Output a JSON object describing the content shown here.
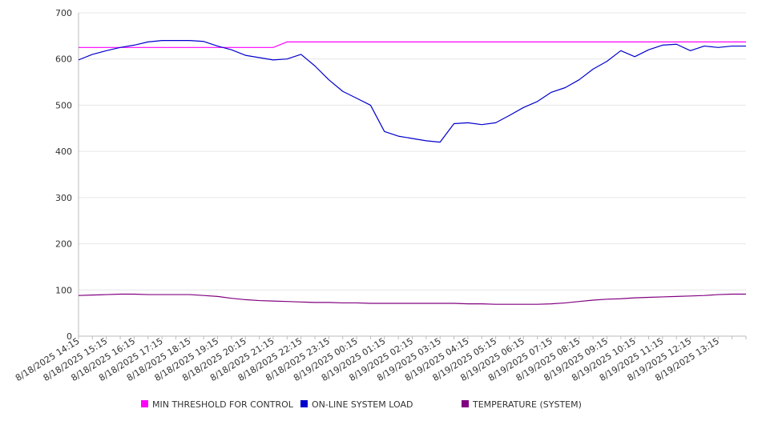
{
  "chart_data": {
    "type": "line",
    "title": "",
    "xlabel": "",
    "ylabel": "",
    "ylim": [
      0,
      700
    ],
    "yticks": [
      0,
      100,
      200,
      300,
      400,
      500,
      600,
      700
    ],
    "grid": "horizontal",
    "legend_position": "bottom",
    "x_tick_labels": [
      "8/18/2025 14:15",
      "8/18/2025 15:15",
      "8/18/2025 16:15",
      "8/18/2025 17:15",
      "8/18/2025 18:15",
      "8/18/2025 19:15",
      "8/18/2025 20:15",
      "8/18/2025 21:15",
      "8/18/2025 22:15",
      "8/18/2025 23:15",
      "8/19/2025 00:15",
      "8/19/2025 01:15",
      "8/19/2025 02:15",
      "8/19/2025 03:15",
      "8/19/2025 04:15",
      "8/19/2025 05:15",
      "8/19/2025 06:15",
      "8/19/2025 07:15",
      "8/19/2025 08:15",
      "8/19/2025 09:15",
      "8/19/2025 10:15",
      "8/19/2025 11:15",
      "8/19/2025 12:15",
      "8/19/2025 13:15"
    ],
    "x": [
      "8/18/2025 14:15",
      "8/18/2025 14:45",
      "8/18/2025 15:15",
      "8/18/2025 15:45",
      "8/18/2025 16:15",
      "8/18/2025 16:45",
      "8/18/2025 17:15",
      "8/18/2025 17:45",
      "8/18/2025 18:15",
      "8/18/2025 18:45",
      "8/18/2025 19:15",
      "8/18/2025 19:45",
      "8/18/2025 20:15",
      "8/18/2025 20:45",
      "8/18/2025 21:15",
      "8/18/2025 21:45",
      "8/18/2025 22:15",
      "8/18/2025 22:45",
      "8/18/2025 23:15",
      "8/18/2025 23:45",
      "8/19/2025 00:15",
      "8/19/2025 00:45",
      "8/19/2025 01:15",
      "8/19/2025 01:45",
      "8/19/2025 02:15",
      "8/19/2025 02:45",
      "8/19/2025 03:15",
      "8/19/2025 03:45",
      "8/19/2025 04:15",
      "8/19/2025 04:45",
      "8/19/2025 05:15",
      "8/19/2025 05:45",
      "8/19/2025 06:15",
      "8/19/2025 06:45",
      "8/19/2025 07:15",
      "8/19/2025 07:45",
      "8/19/2025 08:15",
      "8/19/2025 08:45",
      "8/19/2025 09:15",
      "8/19/2025 09:45",
      "8/19/2025 10:15",
      "8/19/2025 10:45",
      "8/19/2025 11:15",
      "8/19/2025 11:45",
      "8/19/2025 12:15",
      "8/19/2025 12:45",
      "8/19/2025 13:15",
      "8/19/2025 13:45",
      "8/19/2025 14:15"
    ],
    "series": [
      {
        "name": "MIN THRESHOLD FOR CONTROL",
        "color": "#ff00ff",
        "values": [
          625,
          625,
          625,
          625,
          625,
          625,
          625,
          625,
          625,
          625,
          625,
          625,
          625,
          625,
          625,
          637,
          637,
          637,
          637,
          637,
          637,
          637,
          637,
          637,
          637,
          637,
          637,
          637,
          637,
          637,
          637,
          637,
          637,
          637,
          637,
          637,
          637,
          637,
          637,
          637,
          637,
          637,
          637,
          637,
          637,
          637,
          637,
          637,
          637
        ]
      },
      {
        "name": "ON-LINE SYSTEM LOAD",
        "color": "#0000cc",
        "values": [
          598,
          610,
          618,
          625,
          630,
          637,
          640,
          640,
          640,
          638,
          628,
          620,
          608,
          603,
          598,
          600,
          610,
          585,
          555,
          530,
          515,
          500,
          443,
          433,
          428,
          423,
          420,
          460,
          462,
          458,
          462,
          478,
          495,
          508,
          528,
          538,
          555,
          578,
          595,
          618,
          605,
          620,
          630,
          632,
          618,
          628,
          625,
          628,
          628
        ]
      },
      {
        "name": "TEMPERATURE (SYSTEM)",
        "color": "#800080",
        "values": [
          88,
          89,
          90,
          91,
          91,
          90,
          90,
          90,
          90,
          88,
          86,
          82,
          79,
          77,
          76,
          75,
          74,
          73,
          73,
          72,
          72,
          71,
          71,
          71,
          71,
          71,
          71,
          71,
          70,
          70,
          69,
          69,
          69,
          69,
          70,
          72,
          75,
          78,
          80,
          81,
          83,
          84,
          85,
          86,
          87,
          88,
          90,
          91,
          91
        ]
      }
    ]
  }
}
